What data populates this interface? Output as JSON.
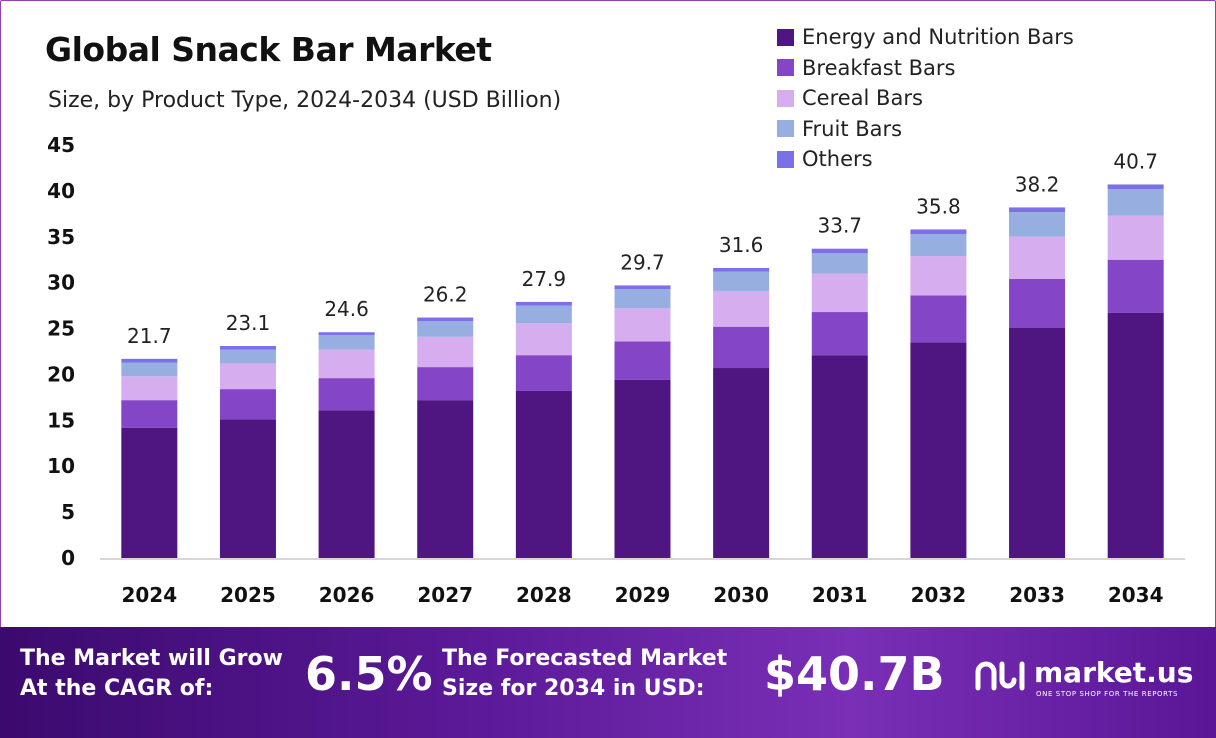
{
  "header": {
    "title": "Global Snack Bar Market",
    "subtitle": "Size, by Product Type, 2024-2034 (USD Billion)"
  },
  "colors": {
    "energy": "#4f1580",
    "breakfast": "#8446c7",
    "cereal": "#d6aef0",
    "fruit": "#97aee0",
    "others": "#7c6fe8"
  },
  "chart_data": {
    "type": "bar",
    "stacked": true,
    "title": "Global Snack Bar Market",
    "subtitle": "Size, by Product Type, 2024-2034 (USD Billion)",
    "categories": [
      "2024",
      "2025",
      "2026",
      "2027",
      "2028",
      "2029",
      "2030",
      "2031",
      "2032",
      "2033",
      "2034"
    ],
    "series": [
      {
        "name": "Energy and Nutrition Bars",
        "values": [
          14.2,
          15.1,
          16.1,
          17.2,
          18.2,
          19.4,
          20.7,
          22.1,
          23.5,
          25.1,
          26.7
        ]
      },
      {
        "name": "Breakfast Bars",
        "values": [
          3.0,
          3.3,
          3.5,
          3.6,
          3.9,
          4.2,
          4.5,
          4.7,
          5.1,
          5.3,
          5.8
        ]
      },
      {
        "name": "Cereal Bars",
        "values": [
          2.6,
          2.8,
          3.1,
          3.3,
          3.5,
          3.6,
          3.9,
          4.2,
          4.3,
          4.6,
          4.8
        ]
      },
      {
        "name": "Fruit Bars",
        "values": [
          1.5,
          1.5,
          1.6,
          1.7,
          1.9,
          2.1,
          2.1,
          2.2,
          2.4,
          2.7,
          2.9
        ]
      },
      {
        "name": "Others",
        "values": [
          0.4,
          0.4,
          0.3,
          0.4,
          0.4,
          0.4,
          0.4,
          0.5,
          0.5,
          0.5,
          0.5
        ]
      }
    ],
    "totals": [
      21.7,
      23.1,
      24.6,
      26.2,
      27.9,
      29.7,
      31.6,
      33.7,
      35.8,
      38.2,
      40.7
    ],
    "total_labels": [
      "21.7",
      "23.1",
      "24.6",
      "26.2",
      "27.9",
      "29.7",
      "31.6",
      "33.7",
      "35.8",
      "38.2",
      "40.7"
    ],
    "yticks": [
      "0",
      "5",
      "10",
      "15",
      "20",
      "25",
      "30",
      "35",
      "40",
      "45"
    ],
    "ylim": [
      0,
      45
    ],
    "xlabel": "",
    "ylabel": "",
    "legend_position": "top-right"
  },
  "footer": {
    "cagr_label_line1": "The Market will Grow",
    "cagr_label_line2": "At the CAGR of:",
    "cagr_value": "6.5%",
    "forecast_label_line1": "The Forecasted Market",
    "forecast_label_line2": "Size for 2034 in USD:",
    "forecast_value": "$40.7B",
    "brand_name": "market.us",
    "brand_tagline": "ONE STOP SHOP FOR THE REPORTS"
  }
}
